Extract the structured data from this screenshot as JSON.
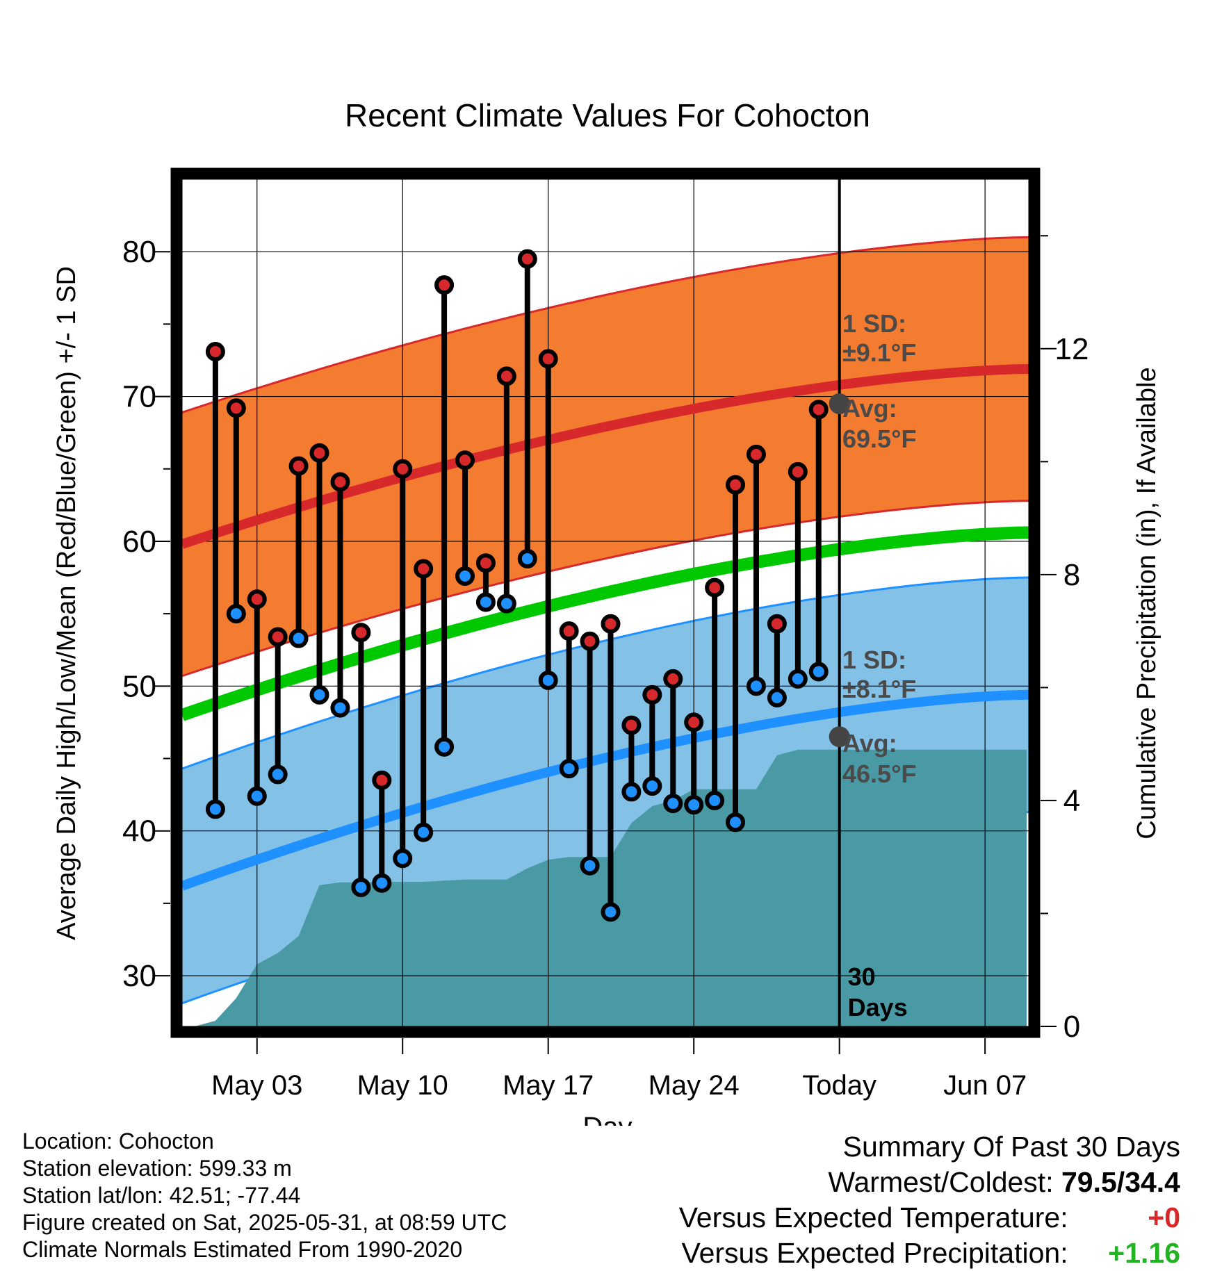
{
  "chart_data": {
    "type": "line",
    "title": "Recent Climate Values For Cohocton",
    "xlabel": "Day",
    "ylabel": "Average Daily High/Low/Mean (Red/Blue/Green) +/- 1 SD",
    "y2label": "Cumulative Precipitation (in), If Available",
    "x_tick_labels": [
      "May 03",
      "May 10",
      "May 17",
      "May 24",
      "Today",
      "Jun 07"
    ],
    "x_tick_days": [
      2,
      9,
      16,
      23,
      30,
      37
    ],
    "xlim": [
      -1.6,
      39.1
    ],
    "ylim": [
      26.5,
      85.0
    ],
    "y_ticks": [
      30,
      40,
      50,
      60,
      70,
      80
    ],
    "y2lim": [
      0,
      15.0
    ],
    "y2_ticks": [
      0,
      4,
      8,
      12
    ],
    "grid": true,
    "today_marker_label": "30\nDays",
    "days": [
      0,
      1,
      2,
      3,
      4,
      5,
      6,
      7,
      8,
      9,
      10,
      11,
      12,
      13,
      14,
      15,
      16,
      17,
      18,
      19,
      20,
      21,
      22,
      23,
      24,
      25,
      26,
      27,
      28,
      29
    ],
    "high": [
      73.1,
      69.2,
      56.0,
      53.4,
      65.2,
      66.1,
      64.1,
      53.7,
      43.5,
      65.0,
      58.1,
      77.7,
      65.6,
      58.5,
      71.4,
      79.5,
      72.6,
      53.8,
      53.1,
      54.3,
      47.3,
      49.4,
      50.5,
      47.5,
      56.8,
      63.9,
      66.0,
      54.3,
      64.8,
      69.1
    ],
    "low": [
      41.5,
      55.0,
      42.4,
      43.9,
      53.3,
      49.4,
      48.5,
      36.1,
      36.4,
      38.1,
      39.9,
      45.8,
      57.6,
      55.8,
      55.7,
      58.8,
      50.4,
      44.3,
      37.6,
      34.4,
      42.7,
      43.1,
      41.9,
      41.8,
      42.1,
      40.6,
      50.0,
      49.2,
      50.5,
      51.0
    ],
    "normal_high": {
      "name": "Avg",
      "start": 59.8,
      "today": 69.5,
      "end": 71.9
    },
    "normal_high_sd": 9.1,
    "normal_low": {
      "name": "Avg",
      "start": 36.2,
      "today": 46.5,
      "end": 49.4
    },
    "normal_low_sd": 8.1,
    "normal_mean": {
      "start": 48.0,
      "end": 60.6
    },
    "cumulative_precip": {
      "days": [
        -1,
        0,
        1,
        2,
        3,
        4,
        5,
        6,
        7,
        8,
        9,
        10,
        11,
        12,
        13,
        14,
        15,
        16,
        17,
        18,
        19,
        20,
        21,
        22,
        23,
        24,
        25,
        26,
        27,
        28,
        29,
        30,
        31,
        32,
        33,
        34,
        35,
        36,
        37,
        38,
        39
      ],
      "values": [
        0,
        0.1,
        0.5,
        1.1,
        1.3,
        1.6,
        2.5,
        2.55,
        2.55,
        2.56,
        2.56,
        2.56,
        2.58,
        2.6,
        2.6,
        2.6,
        2.8,
        2.95,
        3.0,
        3.0,
        3.0,
        3.6,
        3.9,
        4.0,
        4.2,
        4.2,
        4.2,
        4.2,
        4.8,
        4.9,
        4.9,
        4.9,
        4.9,
        4.9,
        4.9,
        4.9,
        4.9,
        4.9,
        4.9,
        4.9,
        4.9
      ]
    },
    "annotations": {
      "high_sd_label": "1 SD:",
      "high_sd_value": "±9.1°F",
      "high_avg_label": "Avg:",
      "high_avg_value": "69.5°F",
      "low_sd_label": "1 SD:",
      "low_sd_value": "±8.1°F",
      "low_avg_label": "Avg:",
      "low_avg_value": "46.5°F"
    }
  },
  "colors": {
    "high_band": "#f47c30",
    "low_band": "#84c1e7",
    "high_line": "#d7282b",
    "low_line": "#1e90ff",
    "mean_line": "#00c800",
    "precip": "#4a9aa5",
    "marker_high": "#d7282b",
    "marker_low": "#1e90ff",
    "annotation_text": "#4a4a4a",
    "warm": "#d7282b",
    "wet": "#22b322"
  },
  "info": {
    "location": "Location: Cohocton",
    "elevation": "Station elevation: 599.33 m",
    "latlon": "Station lat/lon: 42.51; -77.44",
    "created": "Figure created on Sat, 2025-05-31, at 08:59 UTC",
    "normals": "Climate Normals Estimated From 1990-2020"
  },
  "summary": {
    "title": "Summary Of Past 30 Days",
    "warm_cold_label": "Warmest/Coldest:",
    "warm_cold_value": "79.5/34.4",
    "temp_label": "Versus Expected Temperature:",
    "temp_value": "+0",
    "precip_label": "Versus Expected Precipitation:",
    "precip_value": "+1.16"
  }
}
